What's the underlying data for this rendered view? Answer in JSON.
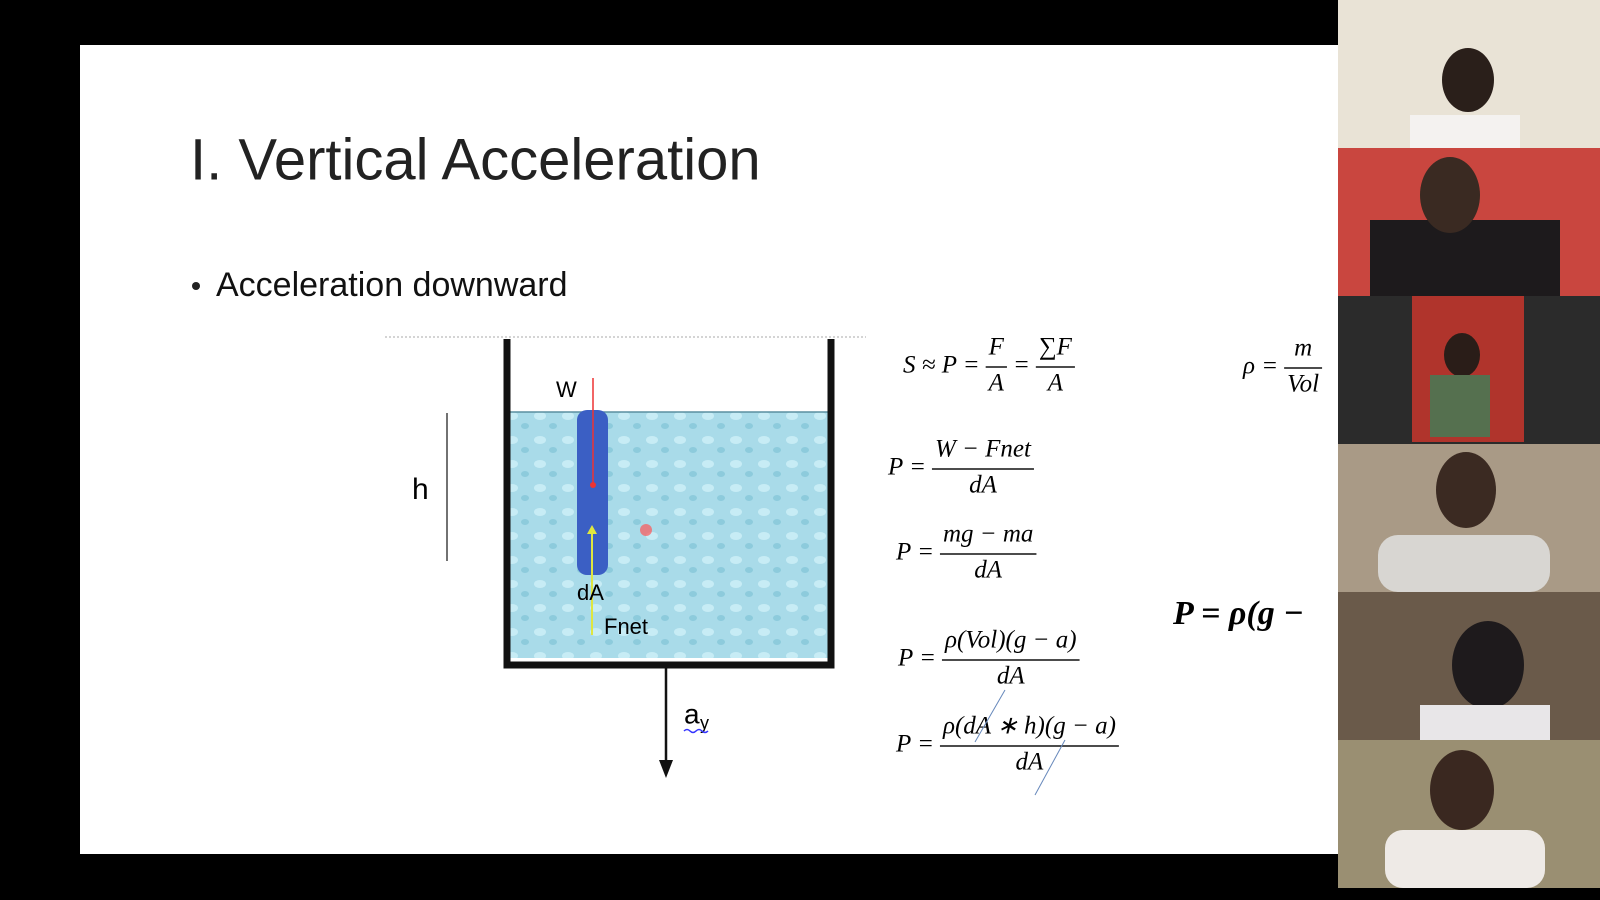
{
  "slide": {
    "title": "I. Vertical Acceleration",
    "bullet": "Acceleration downward",
    "diagram": {
      "weight_label": "W",
      "height_label": "h",
      "area_label": "dA",
      "force_label": "Fnet",
      "accel_label": "a",
      "accel_subscript": "y"
    },
    "equations": [
      {
        "parts": [
          "S ≈ P =",
          {
            "num": "F",
            "den": "A"
          },
          "=",
          {
            "num": "∑F",
            "den": "A"
          }
        ]
      },
      {
        "parts": [
          "ρ =",
          {
            "num": "m",
            "den": "Vol"
          }
        ]
      },
      {
        "parts": [
          "P =",
          {
            "num": "W − Fnet",
            "den": "dA"
          }
        ]
      },
      {
        "parts": [
          "P =",
          {
            "num": "mg − ma",
            "den": "dA"
          }
        ]
      },
      {
        "parts": [
          "P =",
          {
            "num": "ρ(Vol)(g − a)",
            "den": "dA"
          }
        ]
      },
      {
        "parts": [
          "P =",
          {
            "num": "ρ(dA ∗ h)(g − a)",
            "den": "dA"
          }
        ]
      },
      {
        "parts": [
          "P = ρ(g −"
        ]
      }
    ]
  }
}
